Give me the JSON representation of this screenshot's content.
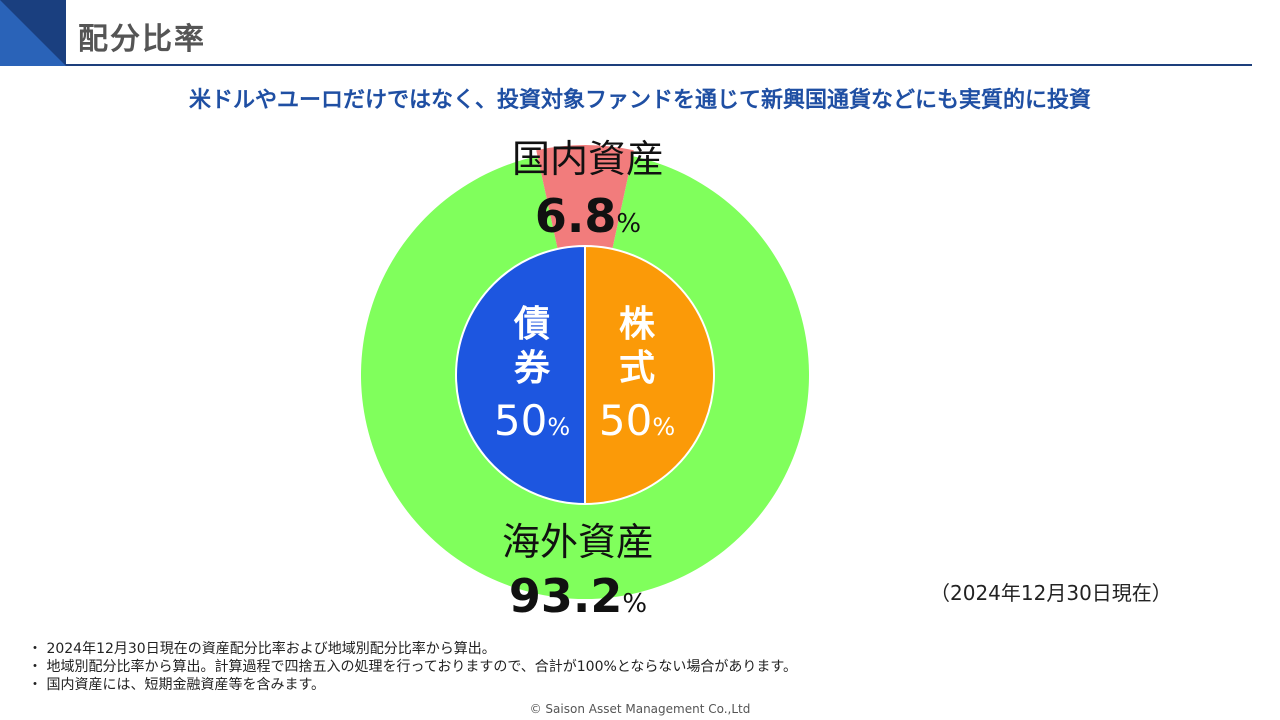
{
  "header": {
    "title": "配分比率",
    "subtitle": "米ドルやユーロだけではなく、投資対象ファンドを通じて新興国通貨などにも実質的に投資"
  },
  "colors": {
    "accent": "#1d3f7c",
    "domestic": "#f27c7c",
    "overseas": "#80ff5c",
    "bonds": "#1d56e0",
    "equities": "#fb9a08"
  },
  "chart_data": [
    {
      "type": "pie",
      "role": "outer-ring",
      "labels": [
        "国内資産",
        "海外資産"
      ],
      "values": [
        6.8,
        93.2
      ],
      "value_text": [
        "6.8",
        "93.2"
      ],
      "unit": "%"
    },
    {
      "type": "pie",
      "role": "inner-circle",
      "labels": [
        "債券",
        "株式"
      ],
      "values": [
        50,
        50
      ],
      "value_text": [
        "50",
        "50"
      ],
      "unit": "%"
    }
  ],
  "as_of": "（2024年12月30日現在）",
  "notes": [
    "2024年12月30日現在の資産配分比率および地域別配分比率から算出。",
    "地域別配分比率から算出。計算過程で四捨五入の処理を行っておりますので、合計が100%とならない場合があります。",
    "国内資産には、短期金融資産等を含みます。"
  ],
  "footer": {
    "copyright": "© Saison Asset Management Co.,Ltd"
  }
}
